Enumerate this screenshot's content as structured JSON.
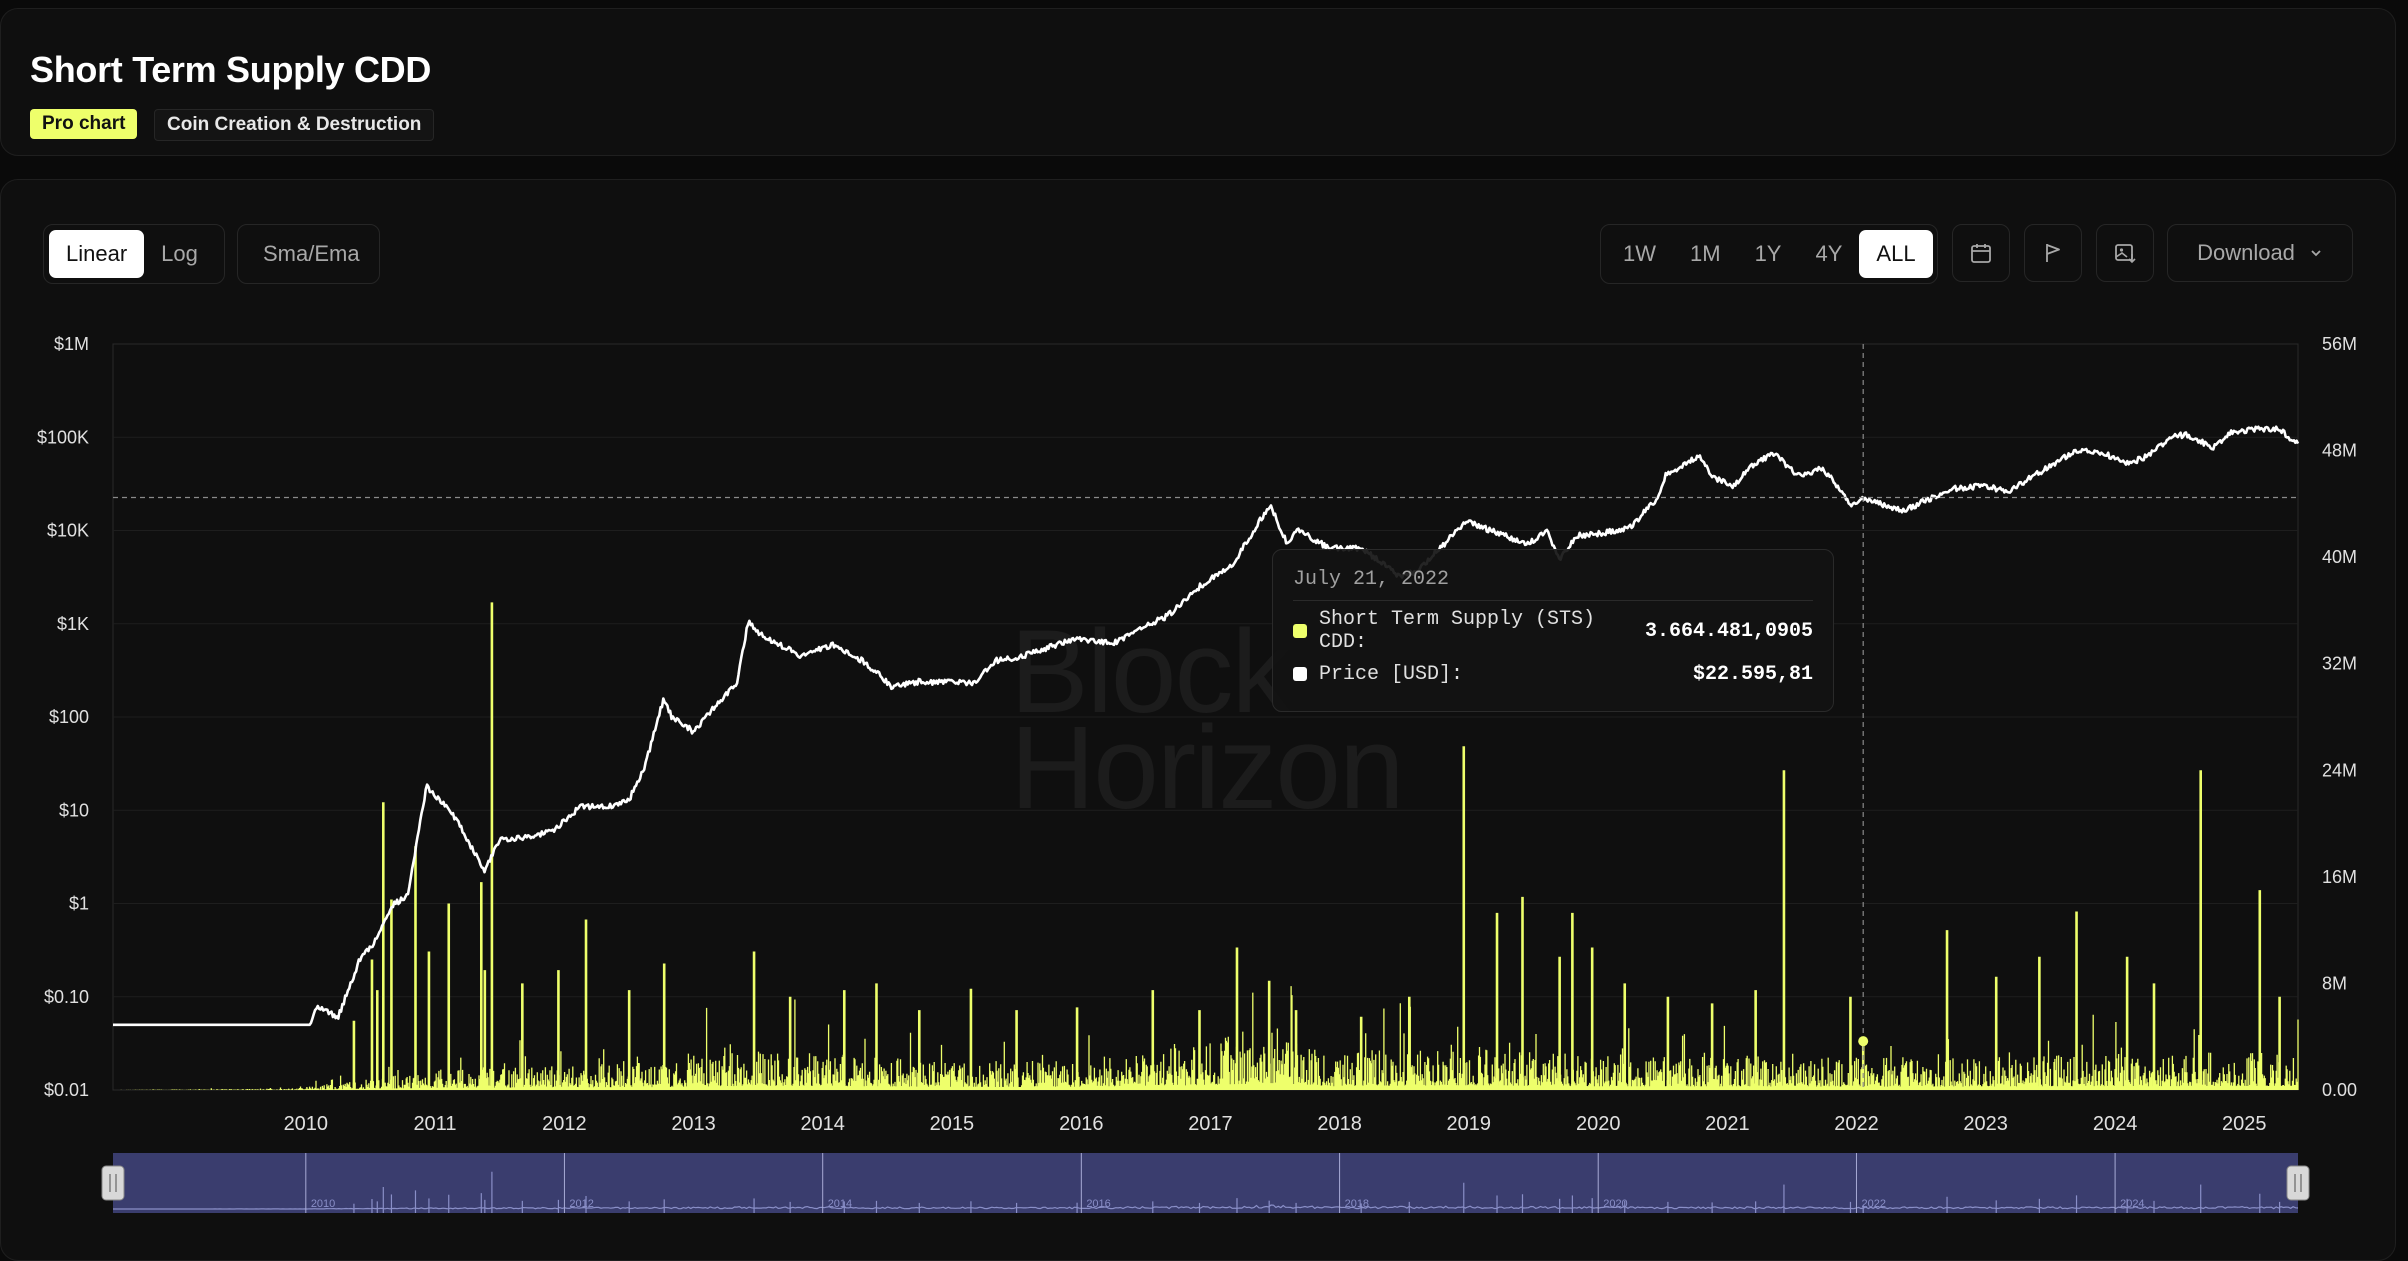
{
  "page": {
    "title": "Short Term Supply CDD",
    "badges": [
      "Pro chart",
      "Coin Creation & Destruction"
    ]
  },
  "toolbar": {
    "scale_options": [
      "Linear",
      "Log"
    ],
    "scale_selected": "Linear",
    "sma_ema_label": "Sma/Ema",
    "range_options": [
      "1W",
      "1M",
      "1Y",
      "4Y",
      "ALL"
    ],
    "range_selected": "ALL",
    "icons": [
      "calendar-icon",
      "flag-icon",
      "image-download-icon"
    ],
    "download_label": "Download"
  },
  "colors": {
    "background": "#0a0a0a",
    "cdd_series": "#eeff6b",
    "price_series": "#ffffff",
    "navigator_fill": "#3a3d6e"
  },
  "tooltip": {
    "date": "July 21, 2022",
    "rows": [
      {
        "label": "Short Term Supply (STS) CDD:",
        "value": "3.664.481,0905",
        "color": "#eeff6b"
      },
      {
        "label": "Price [USD]:",
        "value": "$22.595,81",
        "color": "#ffffff"
      }
    ]
  },
  "watermark": [
    "Block",
    "Horizon"
  ],
  "chart_data": {
    "type": "line",
    "x_axis": {
      "type": "date",
      "range": [
        "2009-01-03",
        "2025-12-01"
      ],
      "tick_labels": [
        "2010",
        "2011",
        "2012",
        "2013",
        "2014",
        "2015",
        "2016",
        "2017",
        "2018",
        "2019",
        "2020",
        "2021",
        "2022",
        "2023",
        "2024",
        "2025"
      ]
    },
    "y_left": {
      "scale": "log",
      "range": [
        0.01,
        1000000
      ],
      "tick_labels": [
        "$0.01",
        "$0.10",
        "$1",
        "$10",
        "$100",
        "$1K",
        "$10K",
        "$100K",
        "$1M"
      ]
    },
    "y_right": {
      "scale": "linear",
      "range": [
        0,
        56000000
      ],
      "tick_labels": [
        "0.00",
        "8M",
        "16M",
        "24M",
        "32M",
        "40M",
        "48M",
        "56M"
      ]
    },
    "grid": true,
    "crosshair": {
      "date": "2022-07-21"
    },
    "series": [
      {
        "name": "Price [USD]",
        "axis": "left",
        "kind": "line",
        "points": [
          [
            "2009-01-03",
            0.05
          ],
          [
            "2010-07-15",
            0.05
          ],
          [
            "2010-08-01",
            0.08
          ],
          [
            "2010-10-01",
            0.06
          ],
          [
            "2010-12-01",
            0.25
          ],
          [
            "2011-01-15",
            0.4
          ],
          [
            "2011-03-01",
            0.95
          ],
          [
            "2011-04-15",
            1.2
          ],
          [
            "2011-06-08",
            18
          ],
          [
            "2011-07-15",
            13
          ],
          [
            "2011-09-01",
            8
          ],
          [
            "2011-11-20",
            2.2
          ],
          [
            "2012-01-01",
            5
          ],
          [
            "2012-03-01",
            5
          ],
          [
            "2012-06-01",
            6
          ],
          [
            "2012-08-15",
            11
          ],
          [
            "2012-11-15",
            11
          ],
          [
            "2013-01-01",
            13
          ],
          [
            "2013-02-15",
            30
          ],
          [
            "2013-04-09",
            160
          ],
          [
            "2013-05-01",
            100
          ],
          [
            "2013-07-01",
            70
          ],
          [
            "2013-09-01",
            130
          ],
          [
            "2013-11-01",
            230
          ],
          [
            "2013-12-04",
            1100
          ],
          [
            "2014-01-01",
            800
          ],
          [
            "2014-03-01",
            600
          ],
          [
            "2014-05-01",
            450
          ],
          [
            "2014-08-01",
            600
          ],
          [
            "2014-11-01",
            380
          ],
          [
            "2015-01-15",
            210
          ],
          [
            "2015-04-01",
            240
          ],
          [
            "2015-09-01",
            230
          ],
          [
            "2015-11-01",
            400
          ],
          [
            "2016-01-01",
            430
          ],
          [
            "2016-06-15",
            700
          ],
          [
            "2016-10-01",
            620
          ],
          [
            "2017-01-01",
            960
          ],
          [
            "2017-03-01",
            1200
          ],
          [
            "2017-06-01",
            2500
          ],
          [
            "2017-09-01",
            4200
          ],
          [
            "2017-12-17",
            19000
          ],
          [
            "2018-02-06",
            7000
          ],
          [
            "2018-03-01",
            10500
          ],
          [
            "2018-06-01",
            6500
          ],
          [
            "2018-09-01",
            6500
          ],
          [
            "2018-12-15",
            3300
          ],
          [
            "2019-02-01",
            3500
          ],
          [
            "2019-06-26",
            12500
          ],
          [
            "2019-09-01",
            10000
          ],
          [
            "2019-12-15",
            7200
          ],
          [
            "2020-02-10",
            10000
          ],
          [
            "2020-03-13",
            4900
          ],
          [
            "2020-05-01",
            8800
          ],
          [
            "2020-07-01",
            9200
          ],
          [
            "2020-10-01",
            10800
          ],
          [
            "2020-12-20",
            23000
          ],
          [
            "2021-01-10",
            40000
          ],
          [
            "2021-04-14",
            63000
          ],
          [
            "2021-05-20",
            37000
          ],
          [
            "2021-07-20",
            30000
          ],
          [
            "2021-09-01",
            48000
          ],
          [
            "2021-11-10",
            67000
          ],
          [
            "2022-01-20",
            38000
          ],
          [
            "2022-03-28",
            47000
          ],
          [
            "2022-06-18",
            19000
          ],
          [
            "2022-07-21",
            22595.81
          ],
          [
            "2022-11-09",
            16000
          ],
          [
            "2023-01-15",
            21000
          ],
          [
            "2023-04-01",
            28000
          ],
          [
            "2023-07-01",
            30500
          ],
          [
            "2023-09-01",
            26000
          ],
          [
            "2023-12-01",
            42000
          ],
          [
            "2024-03-14",
            72000
          ],
          [
            "2024-06-01",
            67000
          ],
          [
            "2024-08-05",
            52000
          ],
          [
            "2024-10-01",
            62000
          ],
          [
            "2024-12-15",
            104000
          ],
          [
            "2025-01-20",
            106000
          ],
          [
            "2025-04-07",
            77000
          ],
          [
            "2025-05-22",
            111000
          ],
          [
            "2025-07-14",
            120000
          ],
          [
            "2025-10-06",
            124000
          ],
          [
            "2025-11-25",
            86000
          ]
        ]
      },
      {
        "name": "Short Term Supply (STS) CDD",
        "axis": "right",
        "kind": "spikes",
        "baseline_noise": [
          [
            "2009-01-03",
            0
          ],
          [
            "2010-06-01",
            80000
          ],
          [
            "2011-01-01",
            600000
          ],
          [
            "2011-08-01",
            1100000
          ],
          [
            "2012-06-01",
            1300000
          ],
          [
            "2013-06-01",
            1500000
          ],
          [
            "2014-01-01",
            2200000
          ],
          [
            "2015-06-01",
            1500000
          ],
          [
            "2016-06-01",
            1500000
          ],
          [
            "2017-06-01",
            2400000
          ],
          [
            "2018-01-01",
            3500000
          ],
          [
            "2018-06-01",
            1900000
          ],
          [
            "2019-06-01",
            2400000
          ],
          [
            "2020-06-01",
            1900000
          ],
          [
            "2021-06-01",
            1800000
          ],
          [
            "2022-06-01",
            1700000
          ],
          [
            "2023-06-01",
            1700000
          ],
          [
            "2024-06-01",
            1900000
          ],
          [
            "2025-12-01",
            2000000
          ]
        ],
        "spikes": [
          [
            "2010-11-15",
            5200000
          ],
          [
            "2011-01-05",
            9800000
          ],
          [
            "2011-01-20",
            7500000
          ],
          [
            "2011-02-06",
            21600000
          ],
          [
            "2011-03-01",
            14300000
          ],
          [
            "2011-05-08",
            18300000
          ],
          [
            "2011-06-15",
            10400000
          ],
          [
            "2011-08-10",
            14000000
          ],
          [
            "2011-11-10",
            15600000
          ],
          [
            "2011-11-20",
            9000000
          ],
          [
            "2011-12-10",
            36600000
          ],
          [
            "2012-03-05",
            8000000
          ],
          [
            "2012-06-15",
            9000000
          ],
          [
            "2012-09-01",
            12800000
          ],
          [
            "2013-01-01",
            7500000
          ],
          [
            "2013-04-10",
            9500000
          ],
          [
            "2013-12-20",
            10400000
          ],
          [
            "2014-04-01",
            7000000
          ],
          [
            "2014-09-01",
            7500000
          ],
          [
            "2014-12-01",
            8000000
          ],
          [
            "2015-04-01",
            6000000
          ],
          [
            "2015-08-25",
            7600000
          ],
          [
            "2016-01-01",
            6000000
          ],
          [
            "2016-06-20",
            6200000
          ],
          [
            "2017-01-20",
            7500000
          ],
          [
            "2017-06-01",
            6000000
          ],
          [
            "2017-09-15",
            10700000
          ],
          [
            "2017-12-15",
            8200000
          ],
          [
            "2018-03-01",
            6000000
          ],
          [
            "2018-09-01",
            5500000
          ],
          [
            "2019-01-15",
            7000000
          ],
          [
            "2019-06-18",
            25800000
          ],
          [
            "2019-09-20",
            13300000
          ],
          [
            "2019-12-01",
            14500000
          ],
          [
            "2020-03-15",
            10000000
          ],
          [
            "2020-04-20",
            13300000
          ],
          [
            "2020-06-15",
            10700000
          ],
          [
            "2020-09-15",
            8000000
          ],
          [
            "2021-01-15",
            7000000
          ],
          [
            "2021-05-20",
            6500000
          ],
          [
            "2021-09-20",
            7500000
          ],
          [
            "2021-12-09",
            24000000
          ],
          [
            "2022-06-15",
            7000000
          ],
          [
            "2022-07-21",
            3664481.0905
          ],
          [
            "2023-03-15",
            12000000
          ],
          [
            "2023-08-01",
            8500000
          ],
          [
            "2023-12-01",
            10000000
          ],
          [
            "2024-03-15",
            13400000
          ],
          [
            "2024-08-05",
            10000000
          ],
          [
            "2024-10-20",
            8000000
          ],
          [
            "2025-03-01",
            24000000
          ],
          [
            "2025-08-15",
            15000000
          ],
          [
            "2025-10-10",
            7000000
          ]
        ]
      }
    ]
  }
}
